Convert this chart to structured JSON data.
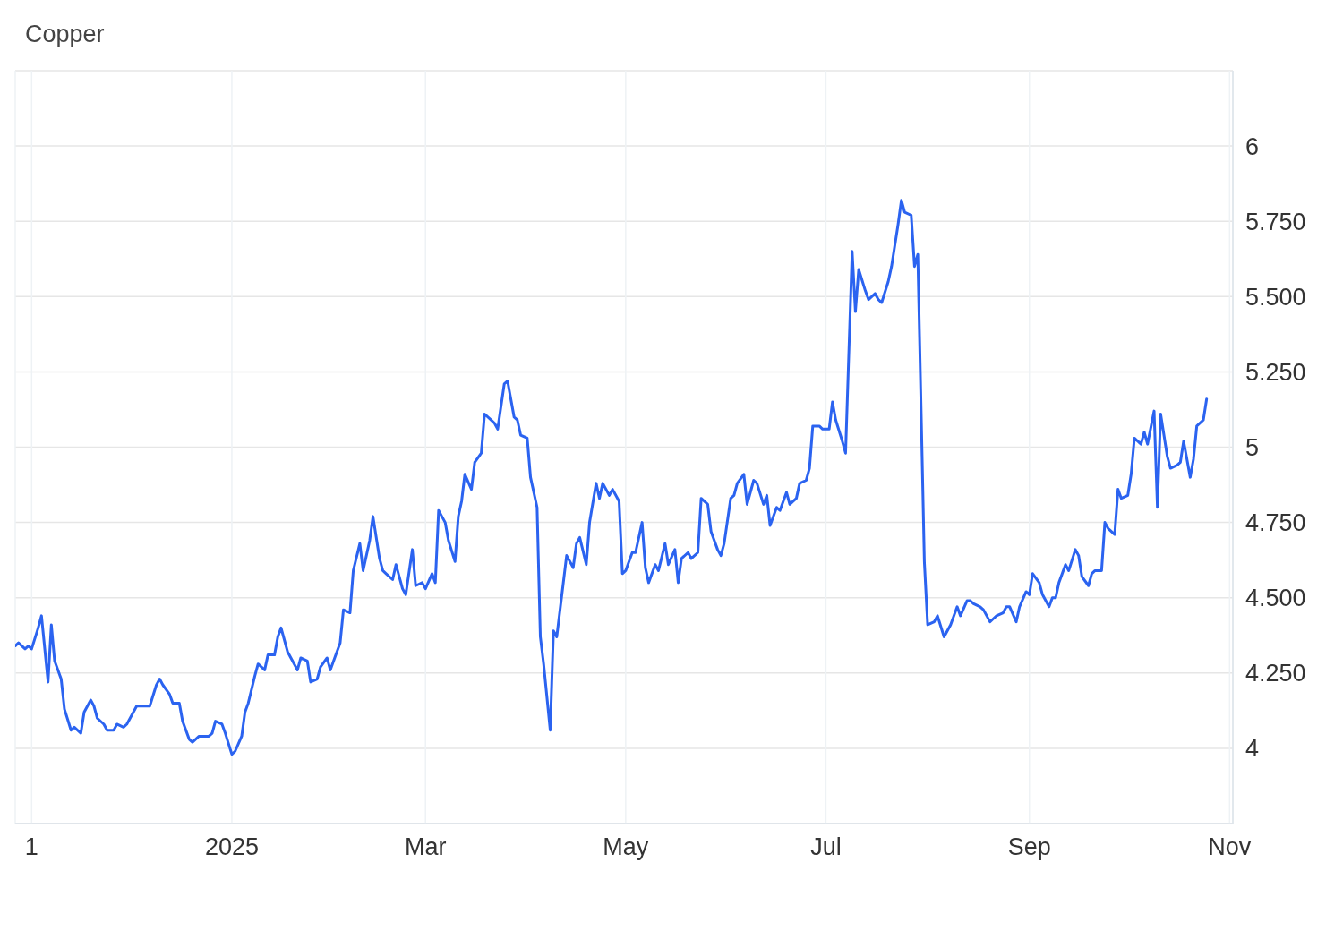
{
  "chart_data": {
    "type": "line",
    "title": "Copper",
    "x": [
      "2024-10-27",
      "2024-10-28",
      "2024-10-30",
      "2024-10-31",
      "2024-11-01",
      "2024-11-03",
      "2024-11-04",
      "2024-11-06",
      "2024-11-07",
      "2024-11-08",
      "2024-11-10",
      "2024-11-11",
      "2024-11-13",
      "2024-11-14",
      "2024-11-16",
      "2024-11-17",
      "2024-11-19",
      "2024-11-20",
      "2024-11-21",
      "2024-11-23",
      "2024-11-24",
      "2024-11-26",
      "2024-11-27",
      "2024-11-29",
      "2024-11-30",
      "2024-12-01",
      "2024-12-03",
      "2024-12-04",
      "2024-12-07",
      "2024-12-09",
      "2024-12-10",
      "2024-12-11",
      "2024-12-13",
      "2024-12-14",
      "2024-12-16",
      "2024-12-17",
      "2024-12-19",
      "2024-12-20",
      "2024-12-22",
      "2024-12-23",
      "2024-12-25",
      "2024-12-26",
      "2024-12-27",
      "2024-12-29",
      "2024-12-30",
      "2025-01-01",
      "2025-01-02",
      "2025-01-04",
      "2025-01-05",
      "2025-01-06",
      "2025-01-08",
      "2025-01-09",
      "2025-01-11",
      "2025-01-12",
      "2025-01-14",
      "2025-01-15",
      "2025-01-16",
      "2025-01-18",
      "2025-01-19",
      "2025-01-21",
      "2025-01-22",
      "2025-01-24",
      "2025-01-25",
      "2025-01-27",
      "2025-01-28",
      "2025-01-30",
      "2025-01-31",
      "2025-02-02",
      "2025-02-03",
      "2025-02-04",
      "2025-02-06",
      "2025-02-07",
      "2025-02-09",
      "2025-02-10",
      "2025-02-12",
      "2025-02-13",
      "2025-02-15",
      "2025-02-16",
      "2025-02-17",
      "2025-02-19",
      "2025-02-20",
      "2025-02-22",
      "2025-02-23",
      "2025-02-25",
      "2025-02-26",
      "2025-02-28",
      "2025-03-01",
      "2025-03-03",
      "2025-03-04",
      "2025-03-05",
      "2025-03-07",
      "2025-03-08",
      "2025-03-10",
      "2025-03-11",
      "2025-03-12",
      "2025-03-13",
      "2025-03-15",
      "2025-03-16",
      "2025-03-18",
      "2025-03-19",
      "2025-03-21",
      "2025-03-22",
      "2025-03-23",
      "2025-03-25",
      "2025-03-26",
      "2025-03-28",
      "2025-03-29",
      "2025-03-30",
      "2025-04-01",
      "2025-04-02",
      "2025-04-04",
      "2025-04-05",
      "2025-04-06",
      "2025-04-08",
      "2025-04-09",
      "2025-04-10",
      "2025-04-12",
      "2025-04-13",
      "2025-04-15",
      "2025-04-16",
      "2025-04-17",
      "2025-04-19",
      "2025-04-20",
      "2025-04-22",
      "2025-04-23",
      "2025-04-24",
      "2025-04-26",
      "2025-04-27",
      "2025-04-29",
      "2025-04-30",
      "2025-05-01",
      "2025-05-03",
      "2025-05-04",
      "2025-05-06",
      "2025-05-07",
      "2025-05-08",
      "2025-05-10",
      "2025-05-11",
      "2025-05-13",
      "2025-05-14",
      "2025-05-16",
      "2025-05-17",
      "2025-05-18",
      "2025-05-20",
      "2025-05-21",
      "2025-05-23",
      "2025-05-24",
      "2025-05-26",
      "2025-05-27",
      "2025-05-29",
      "2025-05-30",
      "2025-05-31",
      "2025-06-02",
      "2025-06-03",
      "2025-06-04",
      "2025-06-06",
      "2025-06-07",
      "2025-06-09",
      "2025-06-10",
      "2025-06-12",
      "2025-06-13",
      "2025-06-14",
      "2025-06-16",
      "2025-06-17",
      "2025-06-19",
      "2025-06-20",
      "2025-06-22",
      "2025-06-23",
      "2025-06-25",
      "2025-06-26",
      "2025-06-27",
      "2025-06-29",
      "2025-06-30",
      "2025-07-02",
      "2025-07-03",
      "2025-07-04",
      "2025-07-06",
      "2025-07-07",
      "2025-07-09",
      "2025-07-10",
      "2025-07-11",
      "2025-07-13",
      "2025-07-14",
      "2025-07-16",
      "2025-07-17",
      "2025-07-18",
      "2025-07-20",
      "2025-07-21",
      "2025-07-23",
      "2025-07-24",
      "2025-07-25",
      "2025-07-27",
      "2025-07-28",
      "2025-07-29",
      "2025-07-31",
      "2025-08-01",
      "2025-08-03",
      "2025-08-04",
      "2025-08-06",
      "2025-08-07",
      "2025-08-08",
      "2025-08-10",
      "2025-08-11",
      "2025-08-13",
      "2025-08-14",
      "2025-08-15",
      "2025-08-17",
      "2025-08-18",
      "2025-08-20",
      "2025-08-21",
      "2025-08-22",
      "2025-08-24",
      "2025-08-25",
      "2025-08-26",
      "2025-08-28",
      "2025-08-29",
      "2025-08-31",
      "2025-09-01",
      "2025-09-02",
      "2025-09-04",
      "2025-09-05",
      "2025-09-07",
      "2025-09-08",
      "2025-09-09",
      "2025-09-10",
      "2025-09-12",
      "2025-09-13",
      "2025-09-15",
      "2025-09-16",
      "2025-09-17",
      "2025-09-19",
      "2025-09-20",
      "2025-09-21",
      "2025-09-23",
      "2025-09-24",
      "2025-09-25",
      "2025-09-27",
      "2025-09-28",
      "2025-09-29",
      "2025-10-01",
      "2025-10-02",
      "2025-10-03",
      "2025-10-05",
      "2025-10-06",
      "2025-10-07",
      "2025-10-09",
      "2025-10-10",
      "2025-10-11",
      "2025-10-13",
      "2025-10-14",
      "2025-10-16",
      "2025-10-17",
      "2025-10-18",
      "2025-10-20",
      "2025-10-21",
      "2025-10-22",
      "2025-10-24",
      "2025-10-25"
    ],
    "values": [
      4.34,
      4.35,
      4.33,
      4.34,
      4.33,
      4.4,
      4.44,
      4.22,
      4.41,
      4.29,
      4.23,
      4.13,
      4.06,
      4.07,
      4.05,
      4.12,
      4.16,
      4.14,
      4.1,
      4.08,
      4.06,
      4.06,
      4.08,
      4.07,
      4.08,
      4.1,
      4.14,
      4.14,
      4.14,
      4.21,
      4.23,
      4.21,
      4.18,
      4.15,
      4.15,
      4.09,
      4.03,
      4.02,
      4.04,
      4.04,
      4.04,
      4.05,
      4.09,
      4.08,
      4.05,
      3.98,
      3.99,
      4.04,
      4.12,
      4.15,
      4.24,
      4.28,
      4.26,
      4.31,
      4.31,
      4.37,
      4.4,
      4.32,
      4.3,
      4.26,
      4.3,
      4.29,
      4.22,
      4.23,
      4.27,
      4.3,
      4.26,
      4.32,
      4.35,
      4.46,
      4.45,
      4.59,
      4.68,
      4.59,
      4.69,
      4.77,
      4.63,
      4.59,
      4.58,
      4.56,
      4.61,
      4.53,
      4.51,
      4.66,
      4.54,
      4.55,
      4.53,
      4.58,
      4.55,
      4.79,
      4.75,
      4.69,
      4.62,
      4.77,
      4.82,
      4.91,
      4.86,
      4.95,
      4.98,
      5.11,
      5.09,
      5.08,
      5.06,
      5.21,
      5.22,
      5.1,
      5.09,
      5.04,
      5.03,
      4.9,
      4.8,
      4.37,
      4.28,
      4.06,
      4.39,
      4.37,
      4.55,
      4.64,
      4.6,
      4.68,
      4.7,
      4.61,
      4.75,
      4.88,
      4.83,
      4.88,
      4.84,
      4.86,
      4.82,
      4.58,
      4.59,
      4.65,
      4.65,
      4.75,
      4.6,
      4.55,
      4.61,
      4.59,
      4.68,
      4.61,
      4.66,
      4.55,
      4.63,
      4.65,
      4.63,
      4.65,
      4.83,
      4.81,
      4.72,
      4.66,
      4.64,
      4.68,
      4.83,
      4.84,
      4.88,
      4.91,
      4.81,
      4.89,
      4.88,
      4.81,
      4.84,
      4.74,
      4.8,
      4.79,
      4.85,
      4.81,
      4.83,
      4.88,
      4.89,
      4.93,
      5.07,
      5.07,
      5.06,
      5.06,
      5.15,
      5.09,
      5.02,
      4.98,
      5.65,
      5.45,
      5.59,
      5.52,
      5.49,
      5.51,
      5.49,
      5.48,
      5.55,
      5.6,
      5.74,
      5.82,
      5.78,
      5.77,
      5.6,
      5.64,
      4.62,
      4.41,
      4.42,
      4.44,
      4.37,
      4.39,
      4.41,
      4.47,
      4.44,
      4.49,
      4.49,
      4.48,
      4.47,
      4.46,
      4.42,
      4.43,
      4.44,
      4.45,
      4.47,
      4.47,
      4.42,
      4.47,
      4.52,
      4.51,
      4.58,
      4.55,
      4.51,
      4.47,
      4.5,
      4.5,
      4.55,
      4.61,
      4.59,
      4.66,
      4.64,
      4.57,
      4.54,
      4.58,
      4.59,
      4.59,
      4.75,
      4.73,
      4.71,
      4.86,
      4.83,
      4.84,
      4.91,
      5.03,
      5.01,
      5.05,
      5.01,
      5.12,
      4.8,
      5.11,
      4.97,
      4.93,
      4.94,
      4.95,
      5.02,
      4.9,
      4.96,
      5.07,
      5.09,
      5.16
    ],
    "color": "#2b63f0",
    "marker": "none",
    "xlim": [
      "2024-10-27",
      "2025-11-02"
    ],
    "xticks": [
      {
        "value": "2024-11-01",
        "label": "1"
      },
      {
        "value": "2025-01-01",
        "label": "2025"
      },
      {
        "value": "2025-03-01",
        "label": "Mar"
      },
      {
        "value": "2025-05-01",
        "label": "May"
      },
      {
        "value": "2025-07-01",
        "label": "Jul"
      },
      {
        "value": "2025-09-01",
        "label": "Sep"
      },
      {
        "value": "2025-11-01",
        "label": "Nov"
      }
    ],
    "ylim": [
      3.75,
      6.25
    ],
    "yticks": [
      4,
      {
        "value": 4.25,
        "label": "4.250"
      },
      {
        "value": 4.5,
        "label": "4.500"
      },
      {
        "value": 4.75,
        "label": "4.750"
      },
      5,
      {
        "value": 5.25,
        "label": "5.250"
      },
      {
        "value": 5.5,
        "label": "5.500"
      },
      {
        "value": 5.75,
        "label": "5.750"
      },
      6,
      {
        "value": 6.25,
        "label": null
      }
    ],
    "grid": true
  }
}
